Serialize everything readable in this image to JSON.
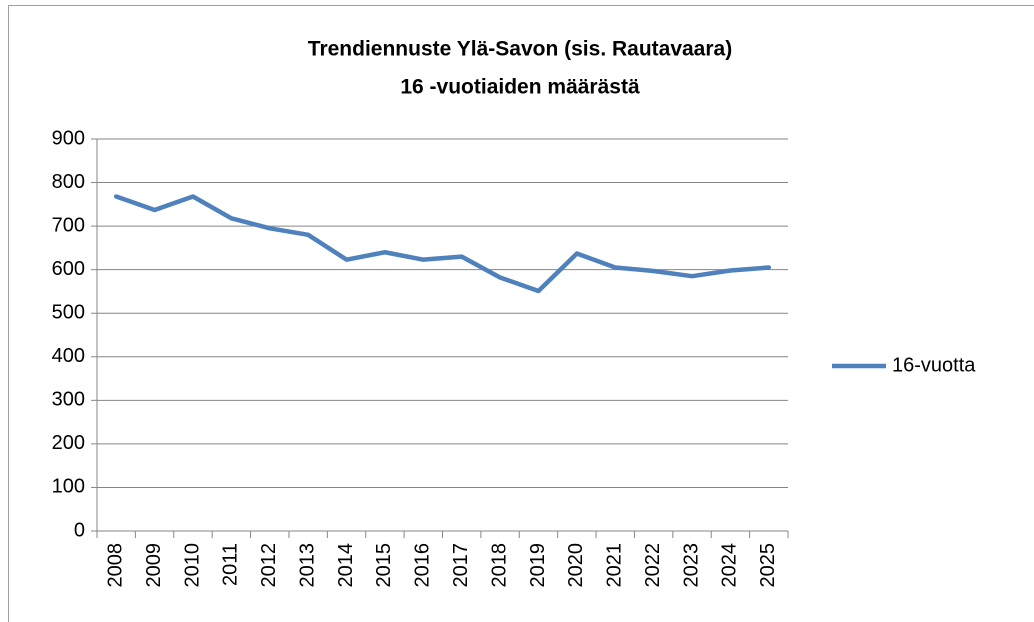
{
  "chart_data": {
    "type": "line",
    "title": [
      "Trendiennuste Ylä-Savon (sis. Rautavaara)",
      "16 -vuotiaiden määrästä"
    ],
    "categories": [
      "2008",
      "2009",
      "2010",
      "2011",
      "2012",
      "2013",
      "2014",
      "2015",
      "2016",
      "2017",
      "2018",
      "2019",
      "2020",
      "2021",
      "2022",
      "2023",
      "2024",
      "2025"
    ],
    "series": [
      {
        "name": "16-vuotta",
        "color": "#4f81bd",
        "values": [
          768,
          737,
          768,
          718,
          695,
          680,
          623,
          640,
          623,
          630,
          582,
          551,
          637,
          605,
          597,
          585,
          598,
          605
        ]
      }
    ],
    "ylim": [
      0,
      900
    ],
    "yticks": [
      0,
      100,
      200,
      300,
      400,
      500,
      600,
      700,
      800,
      900
    ],
    "grid": true,
    "legend": "right"
  }
}
